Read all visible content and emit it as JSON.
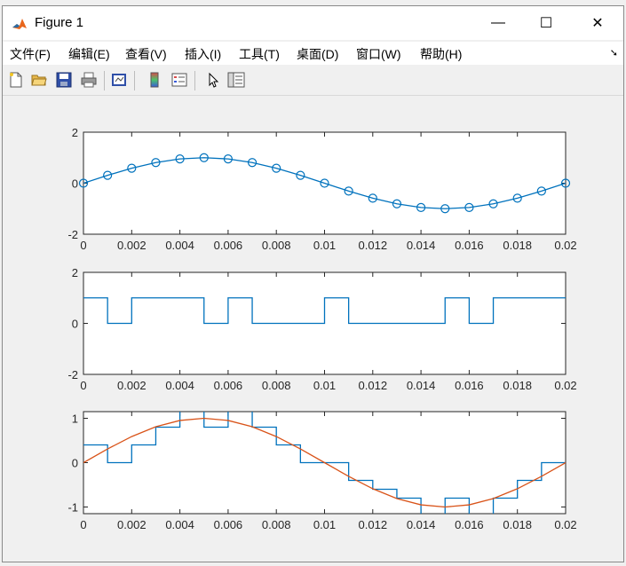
{
  "window": {
    "title": "Figure 1"
  },
  "controls": {
    "minimize": "—",
    "maximize": "☐",
    "close": "✕"
  },
  "menu": {
    "items": [
      "文件(F)",
      "编辑(E)",
      "查看(V)",
      "插入(I)",
      "工具(T)",
      "桌面(D)",
      "窗口(W)",
      "帮助(H)"
    ]
  },
  "toolbar": {
    "icons": [
      "new-figure-icon",
      "open-file-icon",
      "save-icon",
      "print-icon",
      "link-plot-icon",
      "colorbar-icon",
      "legend-icon",
      "pointer-icon",
      "property-inspector-icon"
    ]
  },
  "colors": {
    "series_blue": "#0072bd",
    "series_orange": "#d95319"
  },
  "chart_data": [
    {
      "type": "line",
      "markers": "circle",
      "x": [
        0,
        0.001,
        0.002,
        0.003,
        0.004,
        0.005,
        0.006,
        0.007,
        0.008,
        0.009,
        0.01,
        0.011,
        0.012,
        0.013,
        0.014,
        0.015,
        0.016,
        0.017,
        0.018,
        0.019,
        0.02
      ],
      "y": [
        0,
        0.309,
        0.588,
        0.809,
        0.951,
        1,
        0.951,
        0.809,
        0.588,
        0.309,
        0,
        -0.309,
        -0.588,
        -0.809,
        -0.951,
        -1,
        -0.951,
        -0.809,
        -0.588,
        -0.309,
        0
      ],
      "xlim": [
        0,
        0.02
      ],
      "ylim": [
        -2,
        2
      ],
      "xticks": [
        "0",
        "0.002",
        "0.004",
        "0.006",
        "0.008",
        "0.01",
        "0.012",
        "0.014",
        "0.016",
        "0.018",
        "0.02"
      ],
      "yticks": [
        "-2",
        "0",
        "2"
      ],
      "grid": false
    },
    {
      "type": "line",
      "step": true,
      "x": [
        0,
        0.001,
        0.002,
        0.003,
        0.004,
        0.005,
        0.006,
        0.007,
        0.008,
        0.009,
        0.01,
        0.011,
        0.012,
        0.013,
        0.014,
        0.015,
        0.016,
        0.017,
        0.018,
        0.019,
        0.02
      ],
      "y": [
        1,
        0,
        1,
        1,
        1,
        0,
        1,
        0,
        0,
        0,
        1,
        0,
        0,
        0,
        0,
        1,
        0,
        1,
        1,
        1,
        1
      ],
      "xlim": [
        0,
        0.02
      ],
      "ylim": [
        -2,
        2
      ],
      "xticks": [
        "0",
        "0.002",
        "0.004",
        "0.006",
        "0.008",
        "0.01",
        "0.012",
        "0.014",
        "0.016",
        "0.018",
        "0.02"
      ],
      "yticks": [
        "-2",
        "0",
        "2"
      ],
      "grid": false
    },
    {
      "type": "line",
      "series": [
        {
          "step": true,
          "x": [
            0,
            0.001,
            0.002,
            0.003,
            0.004,
            0.005,
            0.006,
            0.007,
            0.008,
            0.009,
            0.01,
            0.011,
            0.012,
            0.013,
            0.014,
            0.015,
            0.016,
            0.017,
            0.018,
            0.019,
            0.02
          ],
          "y": [
            0.4,
            0,
            0.4,
            0.8,
            1.2,
            0.8,
            1.2,
            0.8,
            0.4,
            0,
            0,
            -0.4,
            -0.6,
            -0.8,
            -1.2,
            -0.8,
            -1.2,
            -0.8,
            -0.4,
            0,
            0
          ]
        },
        {
          "x": [
            0,
            0.001,
            0.002,
            0.003,
            0.004,
            0.005,
            0.006,
            0.007,
            0.008,
            0.009,
            0.01,
            0.011,
            0.012,
            0.013,
            0.014,
            0.015,
            0.016,
            0.017,
            0.018,
            0.019,
            0.02
          ],
          "y": [
            0,
            0.309,
            0.588,
            0.809,
            0.951,
            1,
            0.951,
            0.809,
            0.588,
            0.309,
            0,
            -0.309,
            -0.588,
            -0.809,
            -0.951,
            -1,
            -0.951,
            -0.809,
            -0.588,
            -0.309,
            0
          ]
        }
      ],
      "xlim": [
        0,
        0.02
      ],
      "ylim": [
        -1.15,
        1.15
      ],
      "xticks": [
        "0",
        "0.002",
        "0.004",
        "0.006",
        "0.008",
        "0.01",
        "0.012",
        "0.014",
        "0.016",
        "0.018",
        "0.02"
      ],
      "yticks": [
        "-1",
        "0",
        "1"
      ],
      "ytick_values": [
        -1,
        0,
        1
      ],
      "grid": false
    }
  ]
}
